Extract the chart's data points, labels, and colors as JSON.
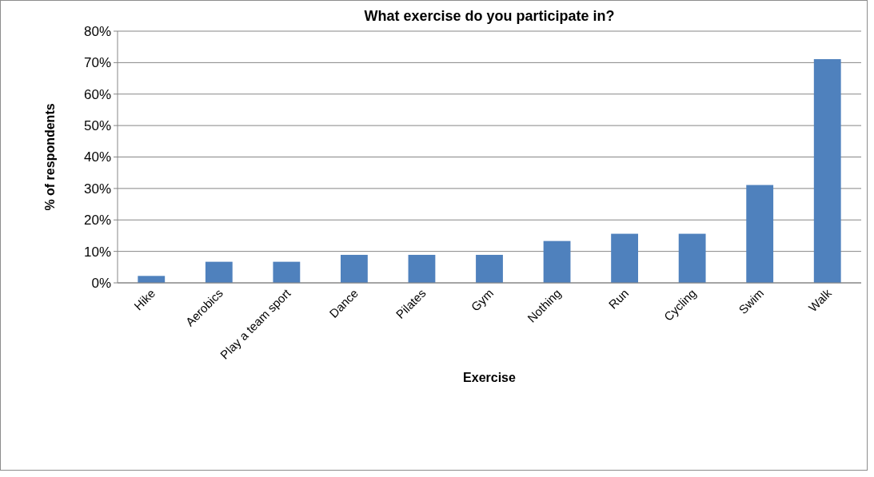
{
  "chart_data": {
    "type": "bar",
    "title": "What exercise do you participate in?",
    "xlabel": "Exercise",
    "ylabel": "% of respondents",
    "categories": [
      "Hike",
      "Aerobics",
      "Play a team sport",
      "Dance",
      "Pilates",
      "Gym",
      "Nothing",
      "Run",
      "Cycling",
      "Swim",
      "Walk"
    ],
    "values": [
      2.2,
      6.7,
      6.7,
      8.9,
      8.9,
      8.9,
      13.3,
      15.6,
      15.6,
      31.1,
      71.1
    ],
    "color": "#4f81bd",
    "ylim": [
      0,
      80
    ],
    "yticks": [
      {
        "value": 0,
        "label": "0%"
      },
      {
        "value": 10,
        "label": "10%"
      },
      {
        "value": 20,
        "label": "20%"
      },
      {
        "value": 30,
        "label": "30%"
      },
      {
        "value": 40,
        "label": "40%"
      },
      {
        "value": 50,
        "label": "50%"
      },
      {
        "value": 60,
        "label": "60%"
      },
      {
        "value": 70,
        "label": "70%"
      },
      {
        "value": 80,
        "label": "80%"
      }
    ],
    "grid": "y"
  }
}
